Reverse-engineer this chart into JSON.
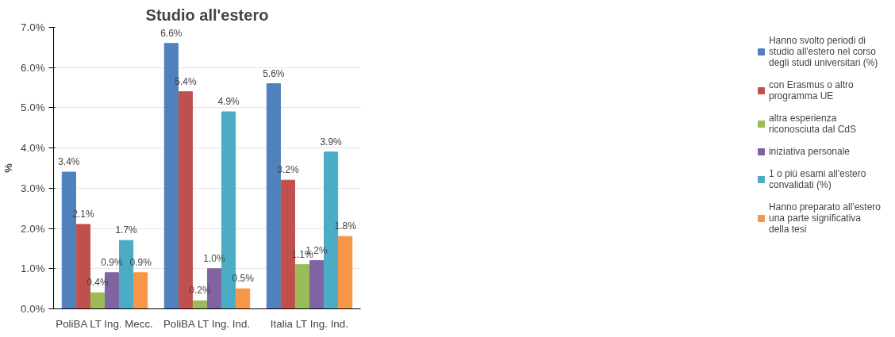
{
  "chart_data": {
    "type": "bar",
    "title": "Studio all'estero",
    "ylabel": "%",
    "categories": [
      "PoliBA LT Ing. Mecc.",
      "PoliBA LT Ing. Ind.",
      "Italia LT Ing. Ind."
    ],
    "series": [
      {
        "name": "Hanno svolto periodi di studio all'estero nel corso degli studi universitari (%)",
        "color": "#4f81bd",
        "values": [
          3.4,
          6.6,
          5.6
        ],
        "value_labels": [
          "3.4%",
          "6.6%",
          "5.6%"
        ]
      },
      {
        "name": "con Erasmus o altro programma UE",
        "color": "#c0504d",
        "values": [
          2.1,
          5.4,
          3.2
        ],
        "value_labels": [
          "2.1%",
          "5.4%",
          "3.2%"
        ]
      },
      {
        "name": "altra esperienza riconosciuta dal CdS",
        "color": "#9bbb59",
        "values": [
          0.4,
          0.2,
          1.1
        ],
        "value_labels": [
          "0.4%",
          "0.2%",
          "1.1%"
        ]
      },
      {
        "name": "iniziativa personale",
        "color": "#8064a2",
        "values": [
          0.9,
          1.0,
          1.2
        ],
        "value_labels": [
          "0.9%",
          "1.0%",
          "1.2%"
        ]
      },
      {
        "name": "1 o più esami all'estero convalidati (%)",
        "color": "#4bacc6",
        "values": [
          1.7,
          4.9,
          3.9
        ],
        "value_labels": [
          "1.7%",
          "4.9%",
          "3.9%"
        ]
      },
      {
        "name": "Hanno preparato all'estero una parte significativa della tesi",
        "color": "#f79646",
        "values": [
          0.9,
          0.5,
          1.8
        ],
        "value_labels": [
          "0.9%",
          "0.5%",
          "1.8%"
        ]
      }
    ],
    "ylim": [
      0,
      7.0
    ],
    "yticks": [
      {
        "value": 0,
        "label": "0.0%"
      },
      {
        "value": 1,
        "label": "1.0%"
      },
      {
        "value": 2,
        "label": "2.0%"
      },
      {
        "value": 3,
        "label": "3.0%"
      },
      {
        "value": 4,
        "label": "4.0%"
      },
      {
        "value": 5,
        "label": "5.0%"
      },
      {
        "value": 6,
        "label": "6.0%"
      },
      {
        "value": 7,
        "label": "7.0%"
      }
    ],
    "grid": "y",
    "legend": "right"
  }
}
